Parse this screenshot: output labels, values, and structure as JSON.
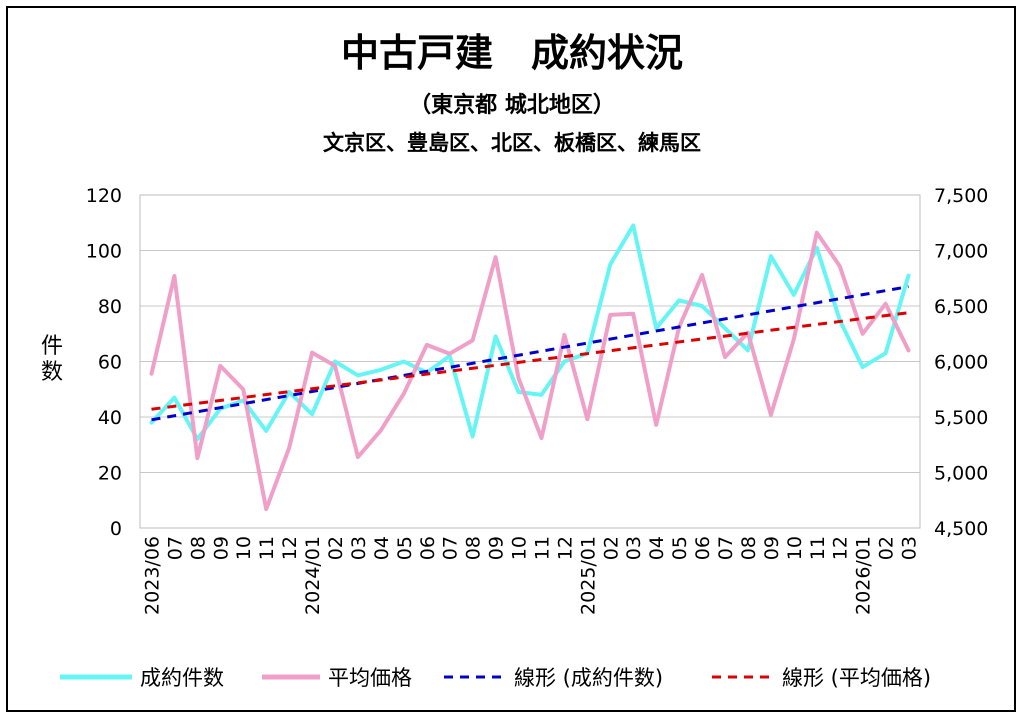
{
  "chart_data": {
    "type": "line",
    "title": "中古戸建　成約状況",
    "subtitle": "（東京都 城北地区）",
    "subtitle2": "文京区、豊島区、北区、板橋区、練馬区",
    "ylabel": "件数",
    "ylim": [
      0,
      120
    ],
    "yticks": [
      "0",
      "20",
      "40",
      "60",
      "80",
      "100",
      "120"
    ],
    "y2lim": [
      4500,
      7500
    ],
    "y2ticks": [
      "4,500",
      "5,000",
      "5,500",
      "6,000",
      "6,500",
      "7,000",
      "7,500"
    ],
    "grid": "horizontal",
    "legend_position": "bottom",
    "categories": [
      "2023/06",
      "07",
      "08",
      "09",
      "10",
      "11",
      "12",
      "2024/01",
      "02",
      "03",
      "04",
      "05",
      "06",
      "07",
      "08",
      "09",
      "10",
      "11",
      "12",
      "2025/01",
      "02",
      "03",
      "04",
      "05",
      "06",
      "07",
      "08",
      "09",
      "10",
      "11",
      "12",
      "2026/01",
      "02",
      "03"
    ],
    "series": [
      {
        "name": "成約件数",
        "axis": "left",
        "color": "#66f5f5",
        "style": "solid",
        "values": [
          38,
          47,
          32,
          43,
          46,
          35,
          49,
          41,
          60,
          55,
          57,
          60,
          56,
          62,
          33,
          69,
          49,
          48,
          60,
          63,
          95,
          109,
          72,
          82,
          80,
          72,
          64,
          98,
          84,
          101,
          75,
          58,
          63,
          91
        ]
      },
      {
        "name": "平均価格",
        "axis": "right",
        "color": "#f0a0c8",
        "style": "solid",
        "values": [
          5890,
          6770,
          5130,
          5960,
          5750,
          4670,
          5220,
          6080,
          5960,
          5140,
          5380,
          5710,
          6150,
          6070,
          6190,
          6940,
          5850,
          5310,
          6240,
          5480,
          6420,
          6430,
          5430,
          6310,
          6780,
          6040,
          6260,
          5520,
          6200,
          7160,
          6860,
          6250,
          6520,
          6100
        ]
      },
      {
        "name": "線形 (成約件数)",
        "axis": "left",
        "color": "#0000cc",
        "style": "dashed",
        "trend": [
          39,
          87
        ]
      },
      {
        "name": "線形 (平均価格)",
        "axis": "right",
        "color": "#dd0000",
        "style": "dashed",
        "trend": [
          5570,
          6440
        ]
      }
    ]
  }
}
